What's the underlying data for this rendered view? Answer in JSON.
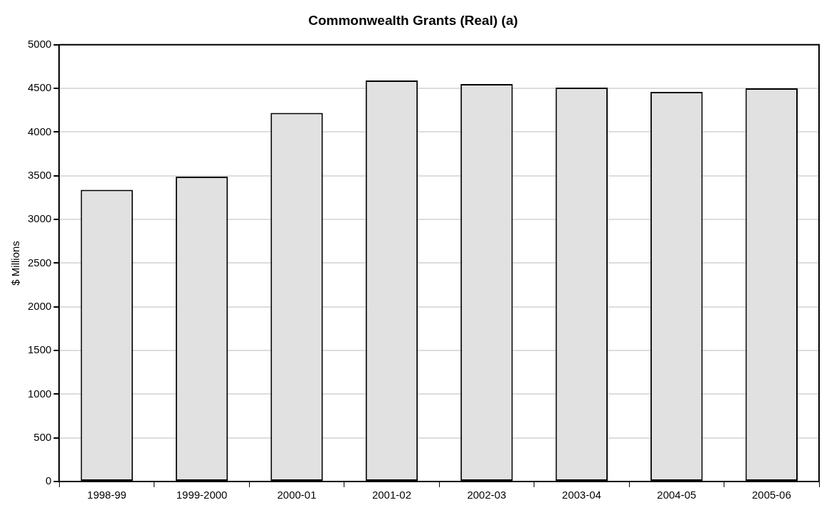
{
  "chart_data": {
    "type": "bar",
    "title": "Commonwealth Grants (Real) (a)",
    "ylabel": "$ Millions",
    "categories": [
      "1998-99",
      "1999-2000",
      "2000-01",
      "2001-02",
      "2002-03",
      "2003-04",
      "2004-05",
      "2005-06"
    ],
    "values": [
      3340,
      3490,
      4220,
      4590,
      4550,
      4510,
      4460,
      4500
    ],
    "color": "#e1e1e1",
    "ylim": [
      0,
      5000
    ],
    "yticks": [
      0,
      500,
      1000,
      1500,
      2000,
      2500,
      3000,
      3500,
      4000,
      4500,
      5000
    ],
    "grid": "y",
    "legend": false
  }
}
